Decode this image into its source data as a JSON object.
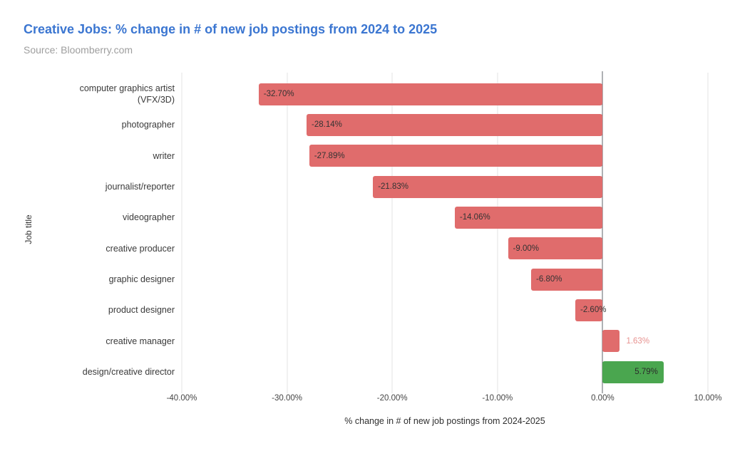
{
  "header": {
    "title": "Creative Jobs: % change in # of new job postings from 2024 to 2025",
    "source": "Source: Bloomberry.com",
    "title_color": "#3b76d1",
    "source_color": "#9e9e9e"
  },
  "chart_data": {
    "type": "bar",
    "orientation": "horizontal",
    "title": "Creative Jobs: % change in # of new job postings from 2024 to 2025",
    "xlabel": "% change in # of new job postings from 2024-2025",
    "ylabel": "Job title",
    "xlim": [
      -40,
      10
    ],
    "grid": true,
    "legend": "none",
    "x_ticks": [
      {
        "value": -40,
        "label": "-40.00%"
      },
      {
        "value": -30,
        "label": "-30.00%"
      },
      {
        "value": -20,
        "label": "-20.00%"
      },
      {
        "value": -10,
        "label": "-10.00%"
      },
      {
        "value": 0,
        "label": "0.00%"
      },
      {
        "value": 10,
        "label": "10.00%"
      }
    ],
    "bars": [
      {
        "category": "computer graphics artist (VFX/3D)",
        "value": -32.7,
        "label": "-32.70%",
        "color": "#e06c6c",
        "label_placement": "inside-start",
        "label_color": "#333333"
      },
      {
        "category": "photographer",
        "value": -28.14,
        "label": "-28.14%",
        "color": "#e06c6c",
        "label_placement": "inside-start",
        "label_color": "#333333"
      },
      {
        "category": "writer",
        "value": -27.89,
        "label": "-27.89%",
        "color": "#e06c6c",
        "label_placement": "inside-start",
        "label_color": "#333333"
      },
      {
        "category": "journalist/reporter",
        "value": -21.83,
        "label": "-21.83%",
        "color": "#e06c6c",
        "label_placement": "inside-start",
        "label_color": "#333333"
      },
      {
        "category": "videographer",
        "value": -14.06,
        "label": "-14.06%",
        "color": "#e06c6c",
        "label_placement": "inside-start",
        "label_color": "#333333"
      },
      {
        "category": "creative producer",
        "value": -9.0,
        "label": "-9.00%",
        "color": "#e06c6c",
        "label_placement": "inside-start",
        "label_color": "#333333"
      },
      {
        "category": "graphic designer",
        "value": -6.8,
        "label": "-6.80%",
        "color": "#e06c6c",
        "label_placement": "inside-start",
        "label_color": "#333333"
      },
      {
        "category": "product designer",
        "value": -2.6,
        "label": "-2.60%",
        "color": "#e06c6c",
        "label_placement": "inside-start",
        "label_color": "#333333"
      },
      {
        "category": "creative manager",
        "value": 1.63,
        "label": "1.63%",
        "color": "#e06c6c",
        "label_placement": "outside-end",
        "label_color": "#e79290"
      },
      {
        "category": "design/creative director",
        "value": 5.79,
        "label": "5.79%",
        "color": "#4aa64f",
        "label_placement": "inside-end",
        "label_color": "#2b2b2b"
      }
    ],
    "colors": {
      "negative_bar": "#e06c6c",
      "positive_bar_green": "#4aa64f",
      "gridline": "#e3e3e3",
      "zero_axis": "#5f6368"
    }
  }
}
